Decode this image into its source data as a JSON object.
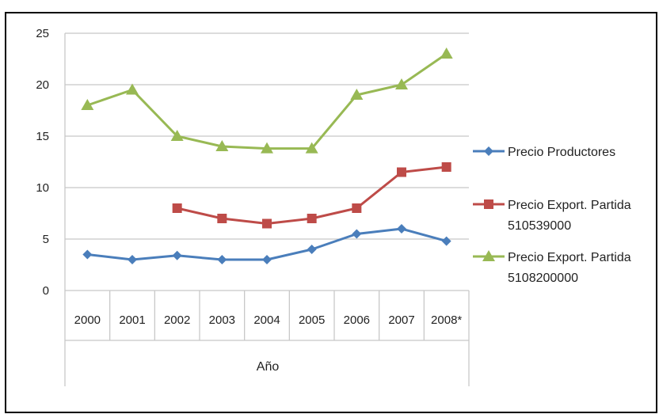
{
  "chart_data": {
    "type": "line",
    "categories": [
      "2000",
      "2001",
      "2002",
      "2003",
      "2004",
      "2005",
      "2006",
      "2007",
      "2008*"
    ],
    "xlabel": "Año",
    "ylabel": "",
    "ylim": [
      0,
      25
    ],
    "yticks": [
      0,
      5,
      10,
      15,
      20,
      25
    ],
    "grid": true,
    "legend_position": "right",
    "series": [
      {
        "name": "Precio Productores",
        "name_lines": [
          "Precio Productores"
        ],
        "color": "#4a7ebb",
        "marker": "diamond",
        "values": [
          3.5,
          3.0,
          3.4,
          3.0,
          3.0,
          4.0,
          5.5,
          6.0,
          4.8
        ]
      },
      {
        "name": "Precio Export. Partida 510539000",
        "name_lines": [
          "Precio Export. Partida",
          "510539000"
        ],
        "color": "#be4b48",
        "marker": "square",
        "values": [
          null,
          null,
          8.0,
          7.0,
          6.5,
          7.0,
          8.0,
          11.5,
          12.0
        ]
      },
      {
        "name": "Precio Export. Partida 5108200000",
        "name_lines": [
          "Precio Export. Partida",
          "5108200000"
        ],
        "color": "#98b954",
        "marker": "triangle",
        "values": [
          18.0,
          19.5,
          15.0,
          14.0,
          13.8,
          13.8,
          19.0,
          20.0,
          23.0
        ]
      }
    ]
  }
}
